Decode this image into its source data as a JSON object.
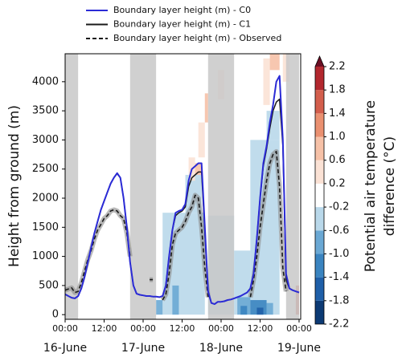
{
  "chart_data": {
    "type": "line",
    "ylabel": "Height from ground (m)",
    "xlim": [
      0,
      72.5
    ],
    "ylim": [
      -80,
      4480
    ],
    "yticks": [
      0,
      500,
      1000,
      1500,
      2000,
      2500,
      3000,
      3500,
      4000
    ],
    "xticks": [
      {
        "value": 0,
        "label": "00:00"
      },
      {
        "value": 12,
        "label": "12:00"
      },
      {
        "value": 24,
        "label": "00:00"
      },
      {
        "value": 36,
        "label": "12:00"
      },
      {
        "value": 48,
        "label": "00:00"
      },
      {
        "value": 60,
        "label": "12:00"
      },
      {
        "value": 72,
        "label": "00:00"
      }
    ],
    "date_labels": [
      {
        "value": 0,
        "label": "16-June"
      },
      {
        "value": 24,
        "label": "17-June"
      },
      {
        "value": 48,
        "label": "18-June"
      },
      {
        "value": 72,
        "label": "19-June"
      }
    ],
    "shaded_periods": [
      [
        0,
        4
      ],
      [
        20,
        28
      ],
      [
        44,
        52
      ],
      [
        68,
        72
      ]
    ],
    "x": [
      0,
      1,
      2,
      3,
      4,
      5,
      6,
      7,
      8,
      9,
      10,
      11,
      12,
      13,
      14,
      15,
      16,
      17,
      18,
      19,
      20,
      21,
      22,
      23,
      24,
      25,
      26,
      27,
      28,
      29,
      30,
      31,
      32,
      33,
      34,
      35,
      36,
      37,
      38,
      39,
      40,
      41,
      42,
      43,
      44,
      45,
      46,
      47,
      48,
      49,
      50,
      51,
      52,
      53,
      54,
      55,
      56,
      57,
      58,
      59,
      60,
      61,
      62,
      63,
      64,
      65,
      66,
      67,
      68,
      69,
      70,
      71,
      72
    ],
    "series": [
      {
        "name": "Boundary layer height (m) - C0",
        "color": "#2b2bd6",
        "style": "solid",
        "values": [
          350,
          320,
          290,
          280,
          320,
          450,
          650,
          900,
          1150,
          1400,
          1600,
          1800,
          1950,
          2100,
          2250,
          2350,
          2430,
          2350,
          2000,
          1500,
          900,
          500,
          360,
          340,
          330,
          320,
          320,
          310,
          310,
          300,
          320,
          500,
          1000,
          1450,
          1750,
          1780,
          1800,
          1900,
          2300,
          2500,
          2550,
          2600,
          2600,
          1500,
          400,
          200,
          180,
          220,
          220,
          230,
          250,
          260,
          280,
          300,
          320,
          350,
          380,
          450,
          700,
          1300,
          2000,
          2600,
          2900,
          3300,
          3600,
          4000,
          4100,
          3000,
          700,
          450,
          420,
          400,
          380
        ]
      },
      {
        "name": "Boundary layer height (m) - C1",
        "color": "#1a1a1a",
        "style": "solid",
        "values": [
          350,
          320,
          290,
          280,
          320,
          450,
          650,
          900,
          1150,
          1400,
          1600,
          1800,
          1950,
          2100,
          2250,
          2350,
          2420,
          2350,
          2000,
          1500,
          900,
          500,
          360,
          340,
          330,
          320,
          320,
          310,
          310,
          300,
          320,
          500,
          1000,
          1450,
          1700,
          1750,
          1780,
          1850,
          2200,
          2350,
          2400,
          2450,
          2450,
          1400,
          400,
          200,
          180,
          220,
          220,
          230,
          250,
          260,
          280,
          300,
          320,
          350,
          380,
          450,
          700,
          1300,
          2000,
          2550,
          2850,
          3200,
          3500,
          3650,
          3700,
          2900,
          600,
          450,
          420,
          400,
          380
        ]
      },
      {
        "name": "Boundary layer height (m) - Observed",
        "color": "#1a1a1a",
        "style": "dashed",
        "values": [
          420,
          440,
          460,
          380,
          400,
          550,
          750,
          950,
          1100,
          1300,
          1450,
          1550,
          1650,
          1700,
          1780,
          1800,
          1780,
          1700,
          1650,
          1400,
          1000,
          null,
          null,
          null,
          null,
          null,
          600,
          600,
          null,
          null,
          250,
          350,
          700,
          1200,
          1400,
          1450,
          1500,
          1600,
          1750,
          1850,
          2050,
          2000,
          1500,
          800,
          300,
          null,
          null,
          null,
          null,
          null,
          null,
          null,
          null,
          null,
          null,
          null,
          null,
          300,
          600,
          1000,
          1500,
          1900,
          2300,
          2600,
          2750,
          2800,
          2200,
          800,
          400,
          null,
          null,
          null,
          null
        ]
      }
    ],
    "colorbar": {
      "label_lines": [
        "Potential air temperature",
        "difference (°C)"
      ],
      "levels": [
        -2.2,
        -1.8,
        -1.4,
        {
          "value": -1.0,
          "label": "-1.0"
        },
        -0.6,
        -0.2,
        0.2,
        0.6,
        {
          "value": 1.0,
          "label": "1.0"
        },
        1.4,
        1.8,
        2.2
      ],
      "colors": [
        "#0c3a74",
        "#1f5fa8",
        "#3a84c0",
        "#6aa8d4",
        "#b9d8ea",
        "#ffffff",
        "#fbe2d5",
        "#f6c1a7",
        "#ea9070",
        "#d35e4c",
        "#b2272e"
      ],
      "extend_color": "#6b0f24"
    },
    "cells": [
      {
        "x": [
          30,
          43
        ],
        "y": [
          0,
          1750
        ],
        "value": -0.4
      },
      {
        "x": [
          37,
          42
        ],
        "y": [
          1750,
          2400
        ],
        "value": -0.4
      },
      {
        "x": [
          44,
          52
        ],
        "y": [
          0,
          1700
        ],
        "value": -0.4
      },
      {
        "x": [
          52,
          57
        ],
        "y": [
          0,
          1100
        ],
        "value": -0.4
      },
      {
        "x": [
          57,
          66
        ],
        "y": [
          0,
          3000
        ],
        "value": -0.4
      },
      {
        "x": [
          62,
          66
        ],
        "y": [
          3000,
          3500
        ],
        "value": -0.4
      },
      {
        "x": [
          28,
          30
        ],
        "y": [
          0,
          250
        ],
        "value": -0.8
      },
      {
        "x": [
          33,
          35
        ],
        "y": [
          0,
          500
        ],
        "value": -0.8
      },
      {
        "x": [
          53,
          57
        ],
        "y": [
          0,
          300
        ],
        "value": -0.8
      },
      {
        "x": [
          62,
          64
        ],
        "y": [
          0,
          200
        ],
        "value": -0.8
      },
      {
        "x": [
          54,
          56
        ],
        "y": [
          0,
          150
        ],
        "value": -1.2
      },
      {
        "x": [
          57,
          62
        ],
        "y": [
          0,
          250
        ],
        "value": -1.2
      },
      {
        "x": [
          59,
          61
        ],
        "y": [
          0,
          120
        ],
        "value": -1.6
      },
      {
        "x": [
          38,
          40
        ],
        "y": [
          2300,
          2700
        ],
        "value": 0.4
      },
      {
        "x": [
          40,
          42
        ],
        "y": [
          2400,
          2600
        ],
        "value": 0.8
      },
      {
        "x": [
          41,
          43
        ],
        "y": [
          2700,
          3300
        ],
        "value": 0.4
      },
      {
        "x": [
          43,
          44
        ],
        "y": [
          3300,
          3800
        ],
        "value": 0.8
      },
      {
        "x": [
          47,
          49
        ],
        "y": [
          3700,
          4200
        ],
        "value": 0.4
      },
      {
        "x": [
          61,
          63
        ],
        "y": [
          3600,
          4400
        ],
        "value": 0.4
      },
      {
        "x": [
          63,
          66
        ],
        "y": [
          4200,
          4480
        ],
        "value": 0.8
      },
      {
        "x": [
          67,
          69
        ],
        "y": [
          4000,
          4480
        ],
        "value": 0.4
      },
      {
        "x": [
          71,
          72
        ],
        "y": [
          0,
          500
        ],
        "value": 1.6
      }
    ]
  }
}
